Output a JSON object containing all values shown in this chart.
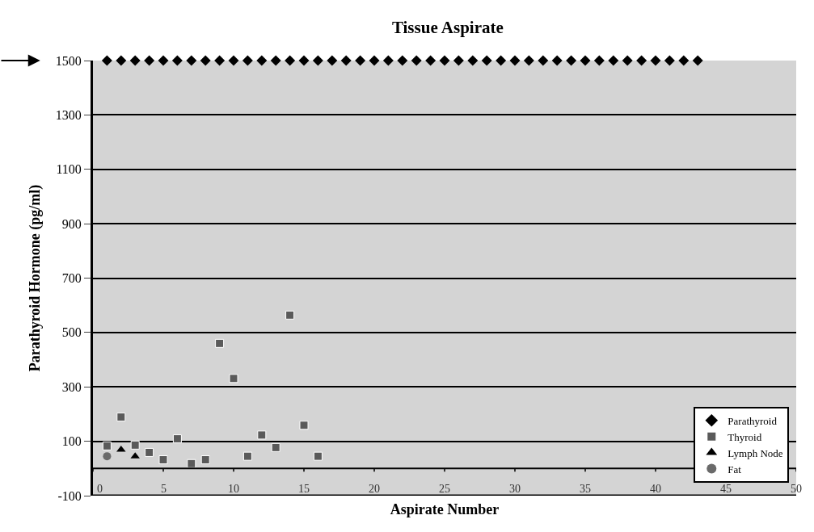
{
  "chart_data": {
    "type": "scatter",
    "title": "Tissue Aspirate",
    "xlabel": "Aspirate Number",
    "ylabel": "Parathyroid Hormone (pg/ml)",
    "series": [
      {
        "name": "Parathyroid",
        "color": "#000000",
        "marker": "diamond",
        "x": [
          1,
          2,
          3,
          4,
          5,
          6,
          7,
          8,
          9,
          10,
          11,
          12,
          13,
          14,
          15,
          16,
          17,
          18,
          19,
          20,
          21,
          22,
          23,
          24,
          25,
          26,
          27,
          28,
          29,
          30,
          31,
          32,
          33,
          34,
          35,
          36,
          37,
          38,
          39,
          40,
          41,
          42,
          43
        ],
        "values": [
          1500,
          1500,
          1500,
          1500,
          1500,
          1500,
          1500,
          1500,
          1500,
          1500,
          1500,
          1500,
          1500,
          1500,
          1500,
          1500,
          1500,
          1500,
          1500,
          1500,
          1500,
          1500,
          1500,
          1500,
          1500,
          1500,
          1500,
          1500,
          1500,
          1500,
          1500,
          1500,
          1500,
          1500,
          1500,
          1500,
          1500,
          1500,
          1500,
          1500,
          1500,
          1500,
          1500
        ]
      },
      {
        "name": "Thyroid",
        "color": "#5a5a5a",
        "marker": "square",
        "x": [
          1,
          2,
          3,
          4,
          5,
          6,
          7,
          8,
          9,
          10,
          11,
          12,
          13,
          14,
          15,
          16
        ],
        "values": [
          83,
          189,
          86,
          59,
          32,
          109,
          18,
          32,
          460,
          331,
          45,
          123,
          77,
          564,
          159,
          45
        ]
      },
      {
        "name": "Lymph Node",
        "color": "#000000",
        "marker": "triangle",
        "x": [
          2,
          3
        ],
        "values": [
          69,
          45
        ]
      },
      {
        "name": "Fat",
        "color": "#6a6a6a",
        "marker": "circle",
        "x": [
          1
        ],
        "values": [
          45
        ]
      }
    ],
    "xlim": [
      0,
      50
    ],
    "xticks": [
      0,
      5,
      10,
      15,
      20,
      25,
      30,
      35,
      40,
      45,
      50
    ],
    "ylim": [
      -100,
      1500
    ],
    "yticks": [
      -100,
      100,
      300,
      500,
      700,
      900,
      1100,
      1300,
      1500
    ],
    "ref_lines": [
      {
        "axis": "y",
        "value": 0,
        "color": "#000000"
      }
    ],
    "grid": "y",
    "legend": "bottom right"
  }
}
